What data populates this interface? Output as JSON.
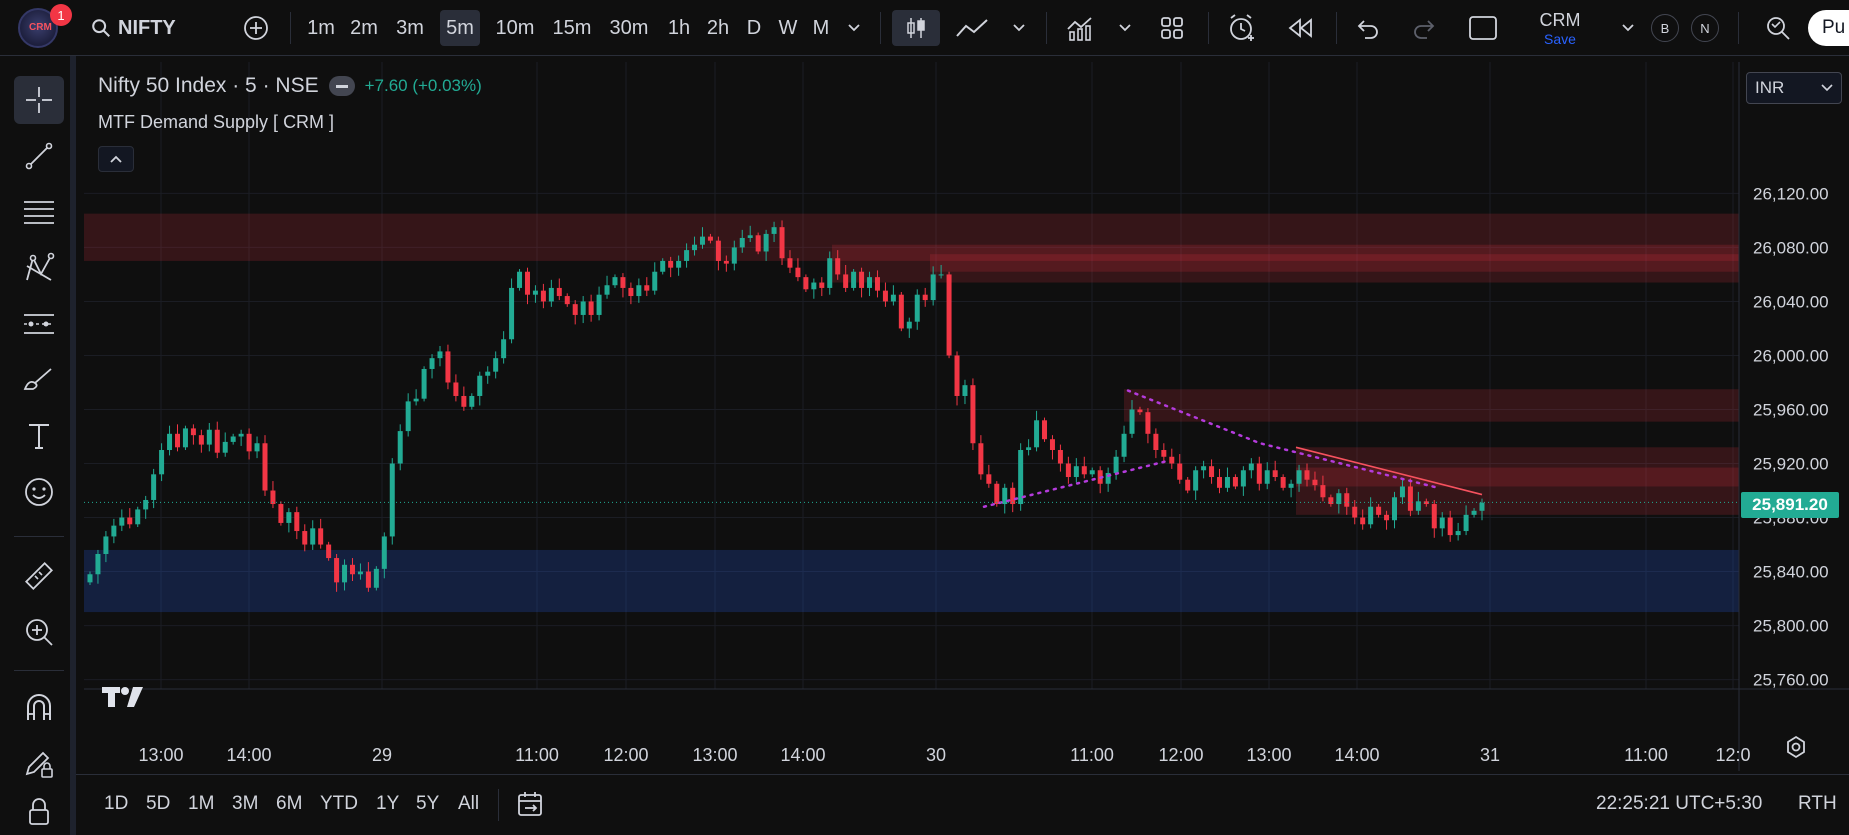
{
  "header": {
    "notification_count": "1",
    "symbol": "NIFTY",
    "timeframes": [
      "1m",
      "2m",
      "3m",
      "5m",
      "10m",
      "15m",
      "30m",
      "1h",
      "2h",
      "D",
      "W",
      "M"
    ],
    "active_timeframe": "5m",
    "layout_name": "CRM",
    "layout_save": "Save",
    "btn_b": "B",
    "btn_n": "N",
    "publish_label": "Pu"
  },
  "legend": {
    "title": "Nifty 50 Index · 5 · NSE",
    "change": "+7.60 (+0.03%)",
    "indicator": "MTF Demand Supply [ CRM ]"
  },
  "currency": "INR",
  "current_price": "25,891.20",
  "price_axis": [
    "26,120.00",
    "26,080.00",
    "26,040.00",
    "26,000.00",
    "25,960.00",
    "25,920.00",
    "25,880.00",
    "25,840.00",
    "25,800.00",
    "25,760.00"
  ],
  "time_axis": [
    "13:00",
    "14:00",
    "29",
    "11:00",
    "12:00",
    "13:00",
    "14:00",
    "30",
    "11:00",
    "12:00",
    "13:00",
    "14:00",
    "31",
    "11:00",
    "12:0"
  ],
  "bottom": {
    "ranges": [
      "1D",
      "5D",
      "1M",
      "3M",
      "6M",
      "YTD",
      "1Y",
      "5Y",
      "All"
    ],
    "clock": "22:25:21 UTC+5:30",
    "session": "RTH"
  },
  "colors": {
    "up": "#22ab94",
    "down": "#f23645",
    "supply_zone": "#f23645",
    "demand_zone": "#2962ff",
    "trendline_dotted": "#b43bdc"
  },
  "chart_data": {
    "type": "candlestick",
    "title": "Nifty 50 Index · 5 · NSE",
    "ylim": [
      25745,
      26140
    ],
    "grid": true,
    "supply_zones": [
      {
        "top": 26105,
        "bottom": 26070
      },
      {
        "top": 26082,
        "bottom": 26054
      },
      {
        "top": 26075,
        "bottom": 26062
      },
      {
        "top": 25975,
        "bottom": 25951
      },
      {
        "top": 25932,
        "bottom": 25882
      },
      {
        "top": 25917,
        "bottom": 25903
      }
    ],
    "demand_zones": [
      {
        "top": 25856,
        "bottom": 25810
      }
    ],
    "closes": [
      25838,
      25853,
      25866,
      25874,
      25880,
      25875,
      25886,
      25893,
      25912,
      25930,
      25942,
      25932,
      25946,
      25941,
      25934,
      25945,
      25928,
      25936,
      25940,
      25942,
      25929,
      25935,
      25900,
      25890,
      25876,
      25884,
      25870,
      25860,
      25872,
      25860,
      25850,
      25832,
      25845,
      25838,
      25840,
      25828,
      25842,
      25866,
      25920,
      25944,
      25966,
      25968,
      25990,
      25998,
      26003,
      25980,
      25970,
      25962,
      25970,
      25985,
      25988,
      25998,
      26012,
      26050,
      26062,
      26045,
      26048,
      26040,
      26050,
      26044,
      26038,
      26030,
      26040,
      26030,
      26045,
      26052,
      26058,
      26050,
      26044,
      26052,
      26048,
      26062,
      26070,
      26065,
      26070,
      26078,
      26082,
      26088,
      26085,
      26070,
      26068,
      26080,
      26087,
      26089,
      26077,
      26090,
      26095,
      26072,
      26065,
      26058,
      26049,
      26054,
      26050,
      26072,
      26060,
      26050,
      26062,
      26050,
      26058,
      26048,
      26040,
      26045,
      26020,
      26025,
      26045,
      26041,
      26060,
      26060,
      26000,
      25970,
      25978,
      25935,
      25912,
      25905,
      25890,
      25902,
      25890,
      25930,
      25932,
      25952,
      25938,
      25930,
      25920,
      25910,
      25918,
      25912,
      25915,
      25905,
      25913,
      25925,
      25942,
      25960,
      25958,
      25942,
      25930,
      25925,
      25920,
      25908,
      25900,
      25915,
      25918,
      25910,
      25902,
      25910,
      25903,
      25915,
      25920,
      25905,
      25915,
      25910,
      25902,
      25905,
      25915,
      25908,
      25904,
      25895,
      25890,
      25898,
      25888,
      25880,
      25875,
      25888,
      25882,
      25878,
      25895,
      25903,
      25885,
      25892,
      25890,
      25872,
      25880,
      25867,
      25870,
      25882,
      25885,
      25891
    ]
  }
}
